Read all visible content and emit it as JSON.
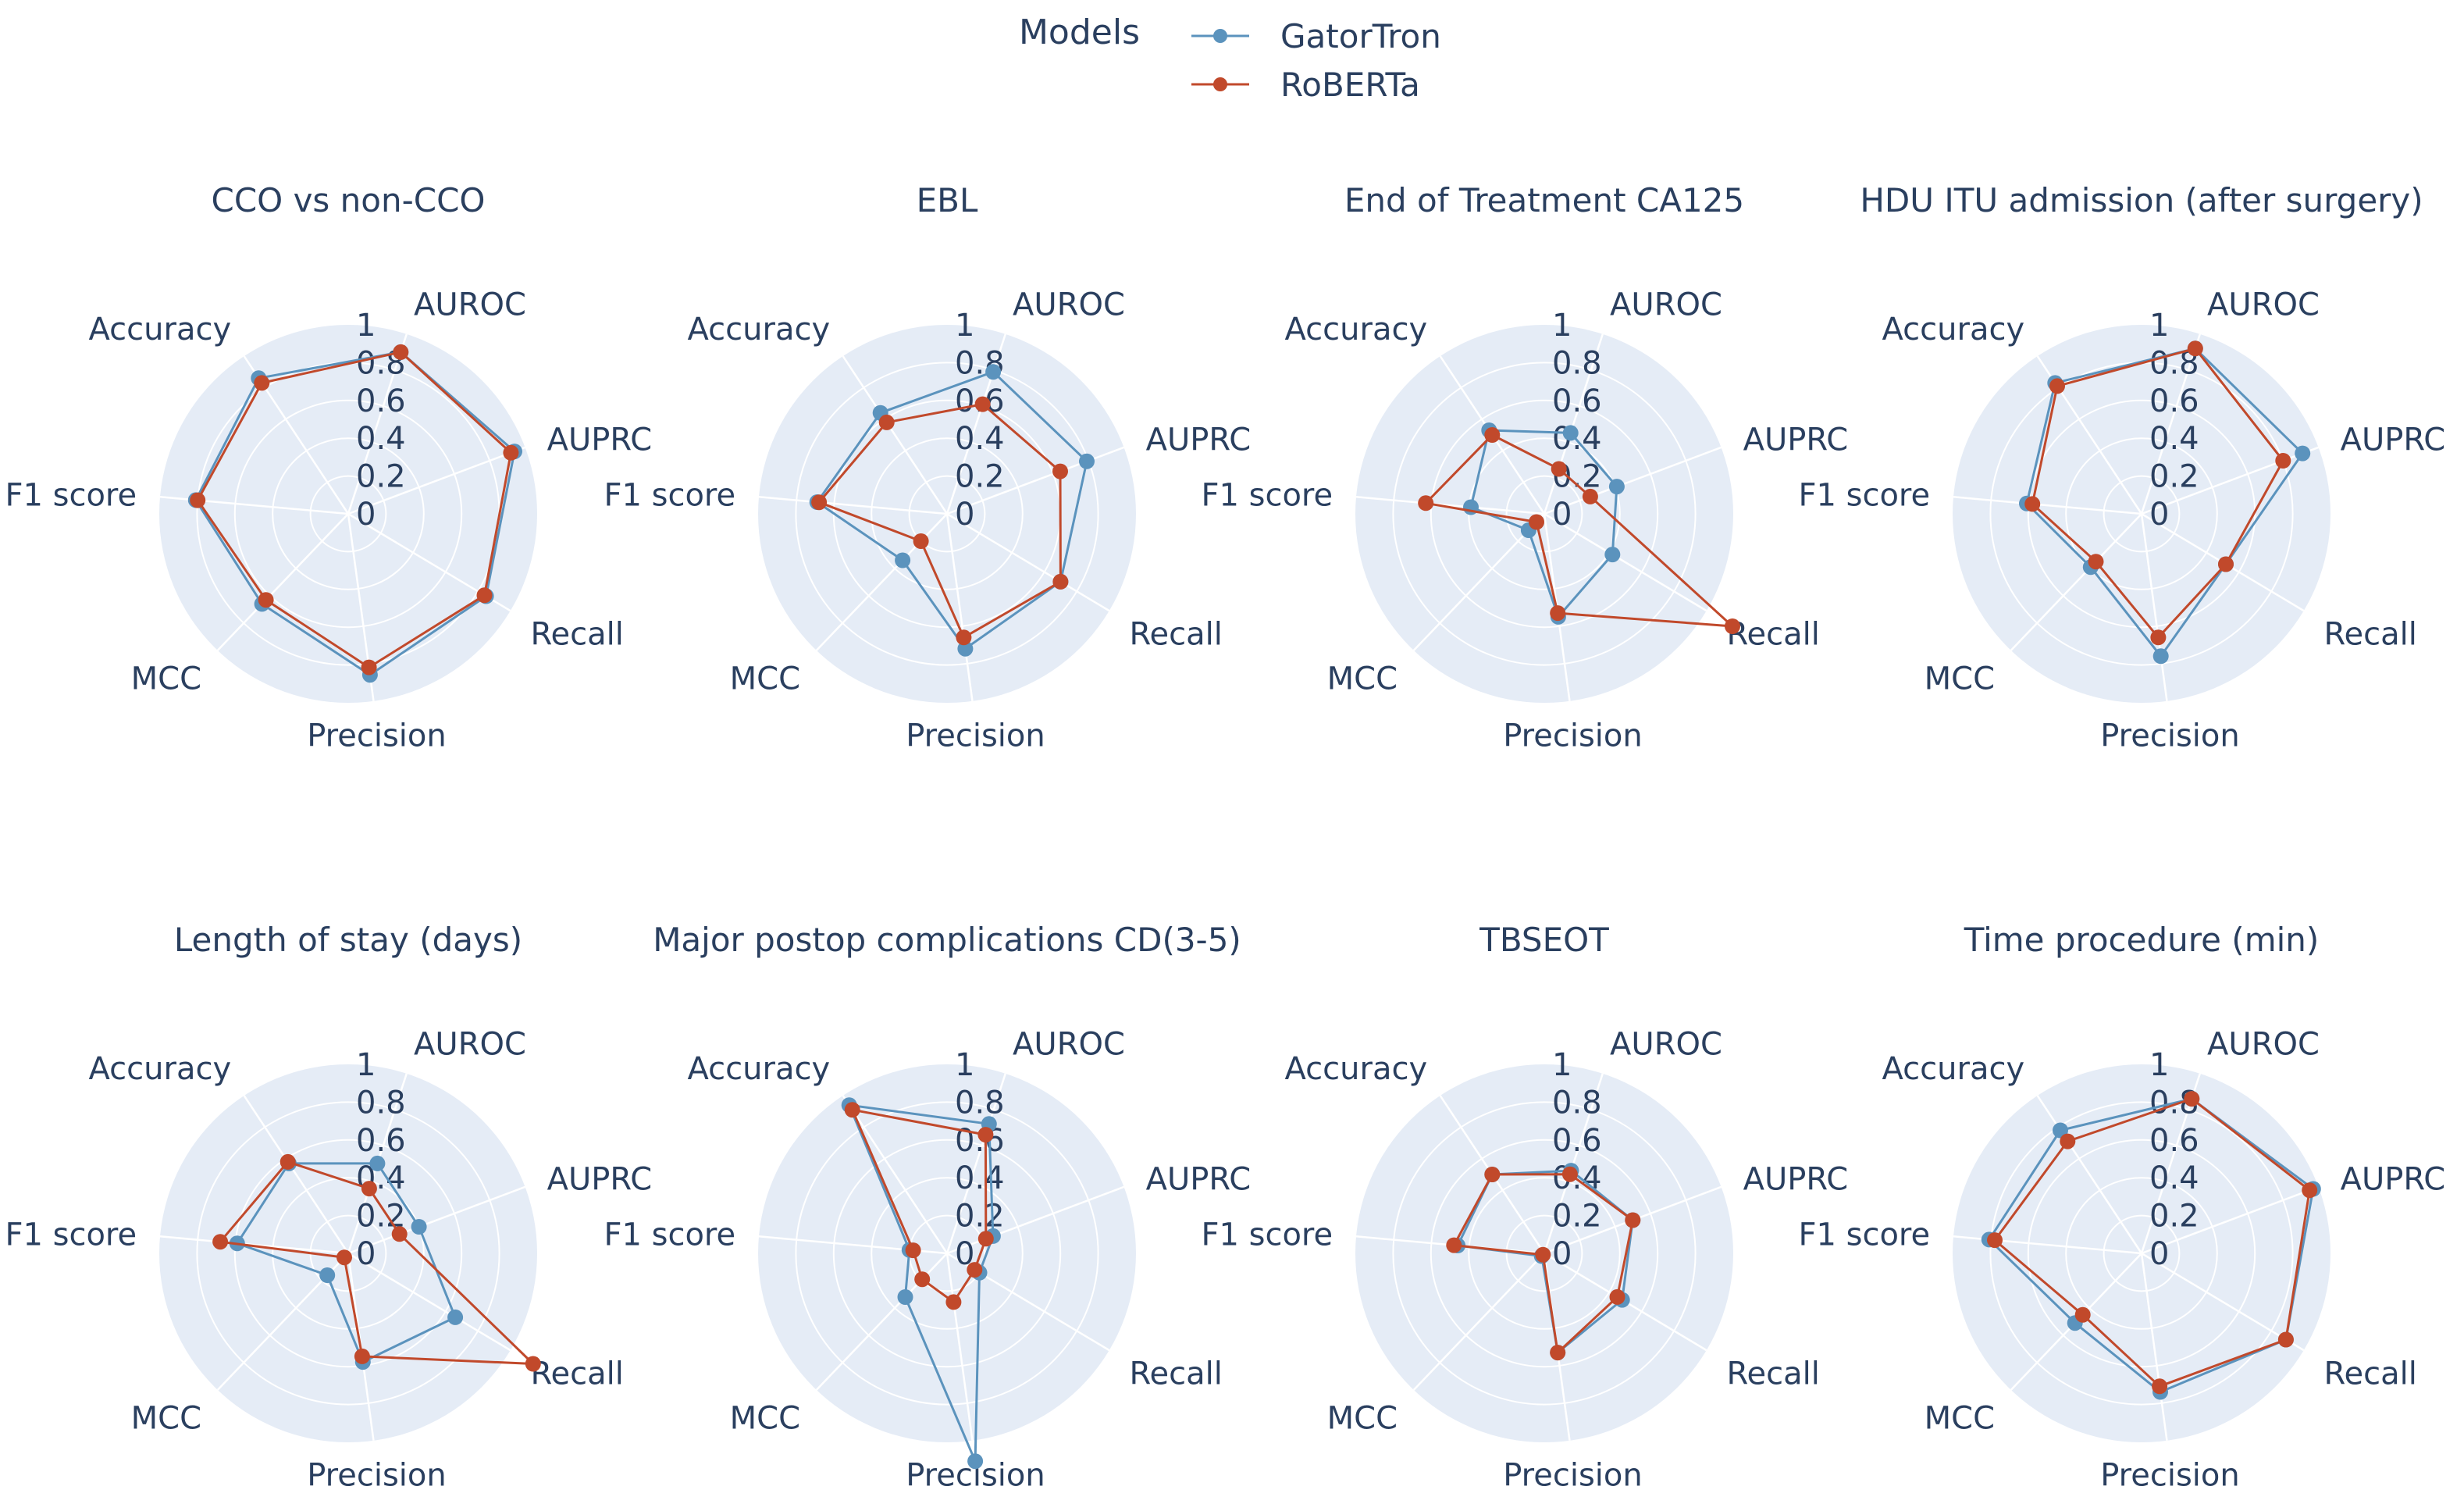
{
  "chart_data": {
    "type": "radar",
    "legend": {
      "title": "Models",
      "position": "top-center",
      "entries": [
        {
          "name": "GatorTron",
          "color": "#5b93bd"
        },
        {
          "name": "RoBERTa",
          "color": "#c1492b"
        }
      ]
    },
    "axes": [
      "AUROC",
      "AUPRC",
      "Recall",
      "Precision",
      "MCC",
      "F1 score",
      "Accuracy"
    ],
    "radial_range": [
      0,
      1
    ],
    "radial_ticks": [
      "0",
      "0.2",
      "0.4",
      "0.6",
      "0.8",
      "1"
    ],
    "grid": true,
    "background": "#e5ecf6",
    "subplots": [
      {
        "title": "CCO vs non-CCO",
        "series": [
          {
            "name": "GatorTron",
            "values": [
              0.9,
              0.94,
              0.85,
              0.86,
              0.66,
              0.81,
              0.86
            ]
          },
          {
            "name": "RoBERTa",
            "values": [
              0.9,
              0.92,
              0.84,
              0.82,
              0.63,
              0.8,
              0.83
            ]
          }
        ]
      },
      {
        "title": "EBL",
        "series": [
          {
            "name": "GatorTron",
            "values": [
              0.79,
              0.79,
              0.7,
              0.72,
              0.34,
              0.69,
              0.64
            ]
          },
          {
            "name": "RoBERTa",
            "values": [
              0.61,
              0.64,
              0.7,
              0.66,
              0.2,
              0.68,
              0.58
            ]
          }
        ]
      },
      {
        "title": "End of Treatment CA125",
        "series": [
          {
            "name": "GatorTron",
            "values": [
              0.45,
              0.41,
              0.42,
              0.55,
              0.12,
              0.39,
              0.53
            ]
          },
          {
            "name": "RoBERTa",
            "values": [
              0.25,
              0.26,
              1.16,
              0.53,
              0.06,
              0.63,
              0.5
            ]
          }
        ]
      },
      {
        "title": "HDU ITU admission (after surgery)",
        "series": [
          {
            "name": "GatorTron",
            "values": [
              0.92,
              0.91,
              0.52,
              0.76,
              0.39,
              0.61,
              0.83
            ]
          },
          {
            "name": "RoBERTa",
            "values": [
              0.92,
              0.8,
              0.52,
              0.66,
              0.35,
              0.58,
              0.81
            ]
          }
        ]
      },
      {
        "title": "Length of stay (days)",
        "series": [
          {
            "name": "GatorTron",
            "values": [
              0.5,
              0.4,
              0.66,
              0.58,
              0.16,
              0.59,
              0.57
            ]
          },
          {
            "name": "RoBERTa",
            "values": [
              0.36,
              0.29,
              1.14,
              0.55,
              0.03,
              0.68,
              0.58
            ]
          }
        ]
      },
      {
        "title": "Major postop complications CD(3-5)",
        "series": [
          {
            "name": "GatorTron",
            "values": [
              0.72,
              0.26,
              0.2,
              1.11,
              0.32,
              0.2,
              0.94
            ]
          },
          {
            "name": "RoBERTa",
            "values": [
              0.66,
              0.22,
              0.17,
              0.26,
              0.19,
              0.18,
              0.91
            ]
          }
        ]
      },
      {
        "title": "TBSEOT",
        "series": [
          {
            "name": "GatorTron",
            "values": [
              0.46,
              0.5,
              0.48,
              0.53,
              0.02,
              0.46,
              0.5
            ]
          },
          {
            "name": "RoBERTa",
            "values": [
              0.44,
              0.5,
              0.45,
              0.53,
              0.01,
              0.48,
              0.5
            ]
          }
        ]
      },
      {
        "title": "Time procedure (min)",
        "series": [
          {
            "name": "GatorTron",
            "values": [
              0.86,
              0.97,
              0.89,
              0.74,
              0.51,
              0.81,
              0.78
            ]
          },
          {
            "name": "RoBERTa",
            "values": [
              0.86,
              0.95,
              0.89,
              0.71,
              0.45,
              0.78,
              0.71
            ]
          }
        ]
      }
    ]
  }
}
